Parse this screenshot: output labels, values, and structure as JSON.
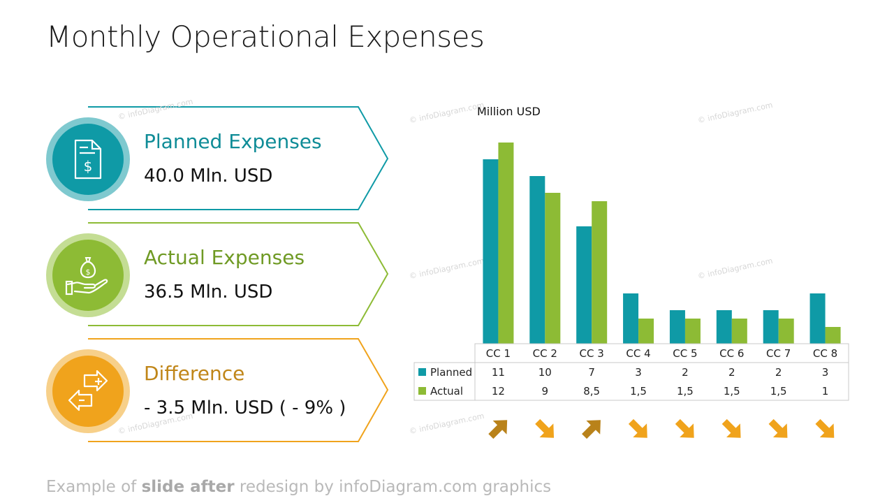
{
  "title": "Monthly Operational Expenses",
  "cards": [
    {
      "label": "Planned Expenses",
      "value": "40.0 Mln. USD",
      "icon": "invoice-dollar-icon",
      "color": "#0f9aa6",
      "ring": "#7fc9cf"
    },
    {
      "label": "Actual Expenses",
      "value": "36.5 Mln. USD",
      "icon": "money-bag-hand-icon",
      "color": "#8dbb35",
      "ring": "#c4dd94"
    },
    {
      "label": "Difference",
      "value": "- 3.5 Mln. USD ( - 9% )",
      "icon": "exchange-plus-minus-icon",
      "color": "#f0a31c",
      "ring": "#f7d08a",
      "label_color": "#c08619"
    }
  ],
  "colors": {
    "planned": "#0f9aa6",
    "actual": "#8dbb35",
    "arrow_up": "#b9821a",
    "arrow_down": "#f0a31c"
  },
  "watermark": "© infoDiagram.com",
  "chart_data": {
    "type": "bar",
    "ylabel": "Million USD",
    "categories": [
      "CC 1",
      "CC 2",
      "CC 3",
      "CC 4",
      "CC 5",
      "CC 6",
      "CC 7",
      "CC 8"
    ],
    "series": [
      {
        "name": "Planned",
        "values": [
          11,
          10,
          7,
          3,
          2,
          2,
          2,
          3
        ],
        "labels": [
          "11",
          "10",
          "7",
          "3",
          "2",
          "2",
          "2",
          "3"
        ]
      },
      {
        "name": "Actual",
        "values": [
          12,
          9,
          8.5,
          1.5,
          1.5,
          1.5,
          1.5,
          1
        ],
        "labels": [
          "12",
          "9",
          "8,5",
          "1,5",
          "1,5",
          "1,5",
          "1,5",
          "1"
        ]
      }
    ],
    "ylim": [
      0,
      13
    ],
    "grid": false,
    "legend": "data-table",
    "trend_arrows": [
      "up",
      "down",
      "up",
      "down",
      "down",
      "down",
      "down",
      "down"
    ]
  },
  "footer": {
    "prefix": "Example of ",
    "bold": "slide after",
    "suffix": " redesign by infoDiagram.com graphics"
  }
}
